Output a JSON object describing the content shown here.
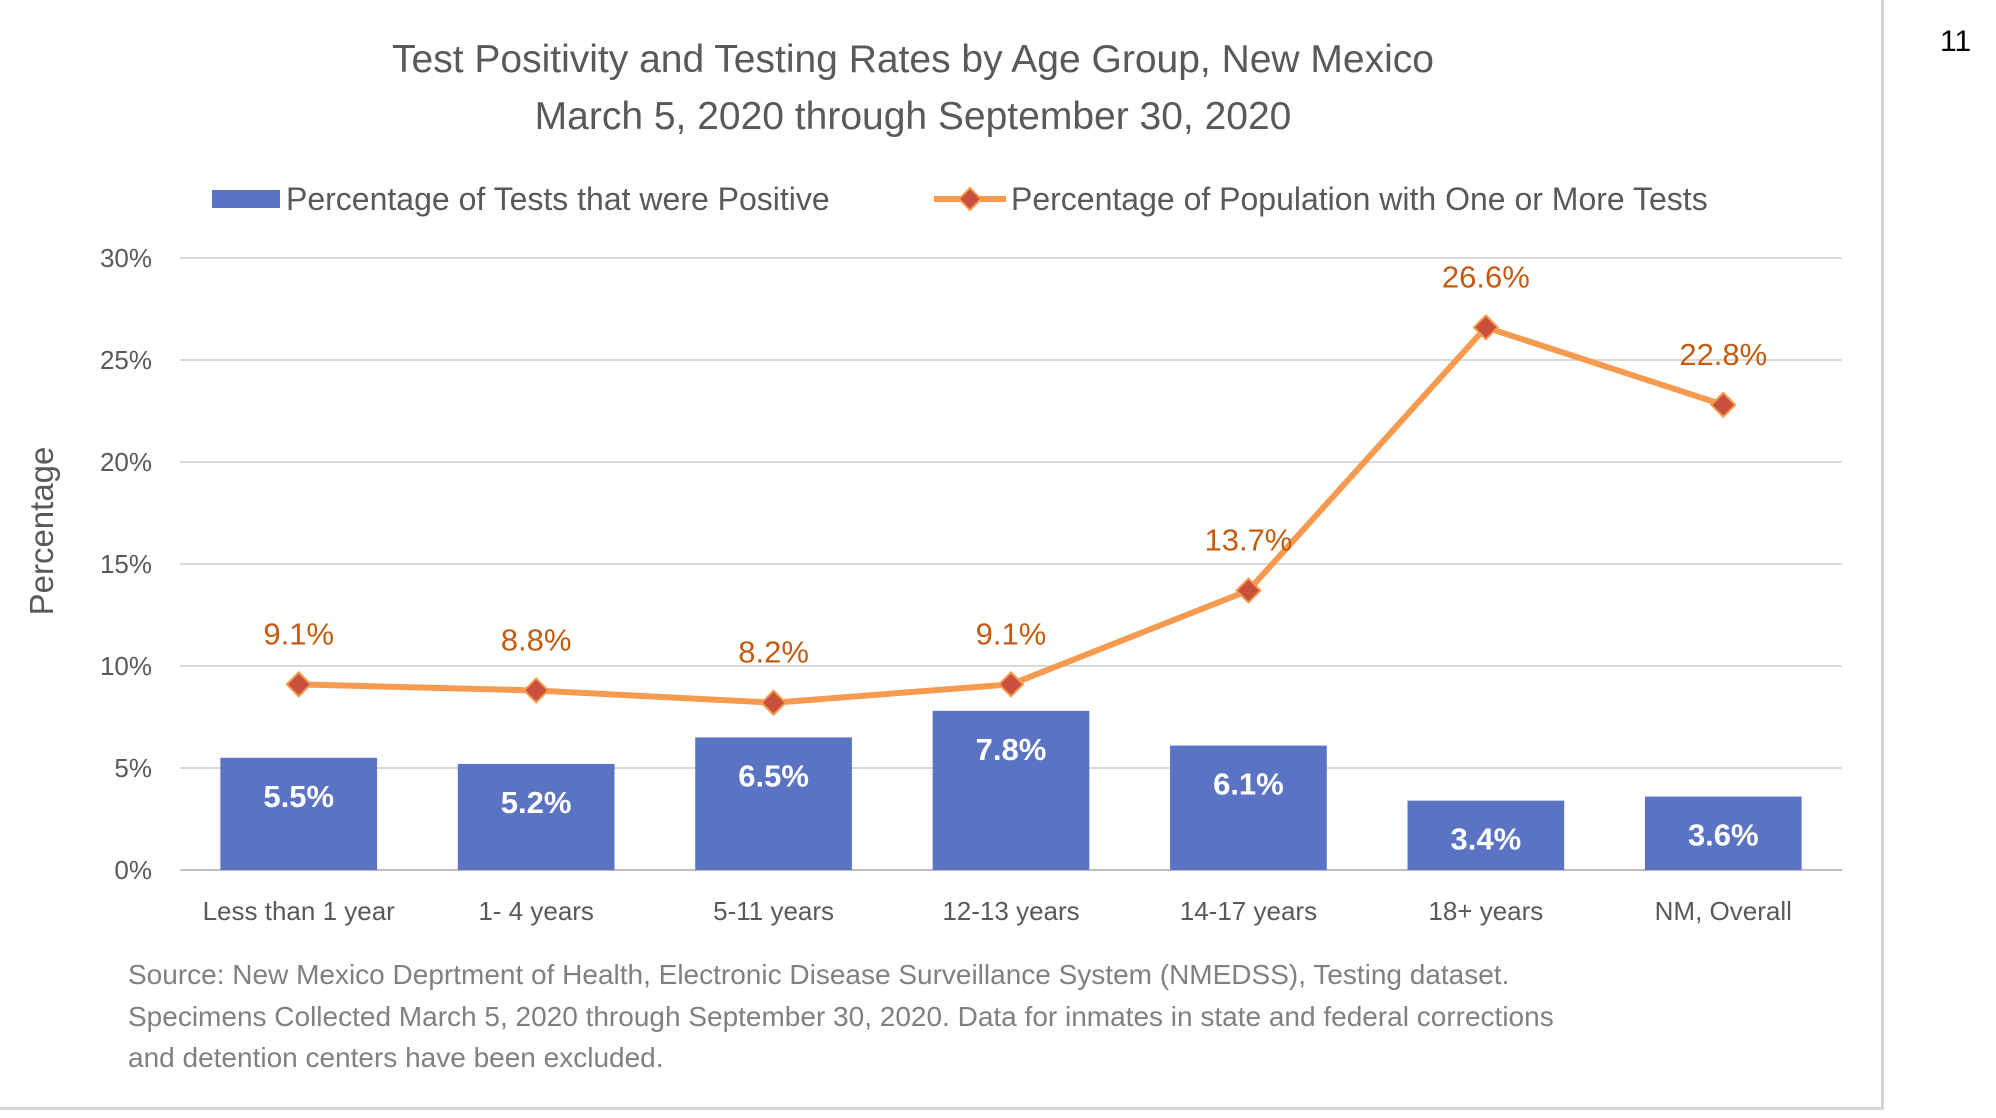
{
  "page_number": "11",
  "chart_data": {
    "type": "bar",
    "title": "Test Positivity and Testing Rates by Age Group, New Mexico",
    "subtitle": "March 5, 2020 through September 30, 2020",
    "xlabel": "",
    "ylabel": "Percentage",
    "ylim": [
      0,
      30
    ],
    "yticks": [
      0,
      5,
      10,
      15,
      20,
      25,
      30
    ],
    "ytick_labels": [
      "0%",
      "5%",
      "10%",
      "15%",
      "20%",
      "25%",
      "30%"
    ],
    "grid": true,
    "legend_position": "top",
    "categories": [
      "Less than 1 year",
      "1- 4 years",
      "5-11 years",
      "12-13 years",
      "14-17 years",
      "18+ years",
      "NM, Overall"
    ],
    "series": [
      {
        "name": "Percentage of Tests that were Positive",
        "type": "bar",
        "values": [
          5.5,
          5.2,
          6.5,
          7.8,
          6.1,
          3.4,
          3.6
        ],
        "labels": [
          "5.5%",
          "5.2%",
          "6.5%",
          "7.8%",
          "6.1%",
          "3.4%",
          "3.6%"
        ],
        "color": "#5A74C3"
      },
      {
        "name": "Percentage of Population with One or More Tests",
        "type": "line",
        "values": [
          9.1,
          8.8,
          8.2,
          9.1,
          13.7,
          26.6,
          22.8
        ],
        "labels": [
          "9.1%",
          "8.8%",
          "8.2%",
          "9.1%",
          "13.7%",
          "26.6%",
          "22.8%"
        ],
        "color": "#F59A4E",
        "marker_color": "#C8503C",
        "label_color": "#C55A11"
      }
    ]
  },
  "source_note": {
    "lines": [
      "Source: New Mexico Deprtment of Health, Electronic Disease Surveillance System (NMEDSS), Testing dataset.",
      "Specimens Collected March 5, 2020 through September 30, 2020. Data for inmates in state and federal corrections",
      "and detention centers have been excluded."
    ]
  }
}
